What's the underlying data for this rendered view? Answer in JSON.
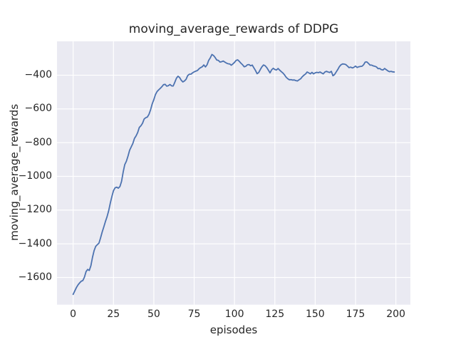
{
  "figure": {
    "background": "#ffffff"
  },
  "chart_data": {
    "type": "line",
    "title": "moving_average_rewards of DDPG",
    "xlabel": "episodes",
    "ylabel": "moving_average_rewards",
    "x_ticks": [
      0,
      25,
      50,
      75,
      100,
      125,
      150,
      175,
      200
    ],
    "y_ticks": [
      -400,
      -600,
      -800,
      -1000,
      -1200,
      -1400,
      -1600
    ],
    "xlim": [
      -10,
      209
    ],
    "ylim": [
      -1761,
      -199
    ],
    "grid": true,
    "legend": "none",
    "style": {
      "plot_background": "#eaeaf2",
      "grid_color": "#ffffff",
      "line_color": "#4c72b0",
      "text_color": "#262626",
      "line_width": 1.8
    },
    "series": [
      {
        "name": "moving_average_rewards",
        "x_is_episode_index": true,
        "values": [
          -1700,
          -1680,
          -1660,
          -1644,
          -1632,
          -1622,
          -1618,
          -1598,
          -1565,
          -1552,
          -1558,
          -1530,
          -1480,
          -1440,
          -1415,
          -1405,
          -1396,
          -1365,
          -1330,
          -1300,
          -1268,
          -1240,
          -1205,
          -1160,
          -1120,
          -1085,
          -1068,
          -1064,
          -1070,
          -1060,
          -1030,
          -975,
          -930,
          -910,
          -880,
          -845,
          -825,
          -805,
          -775,
          -760,
          -740,
          -710,
          -700,
          -685,
          -660,
          -652,
          -648,
          -632,
          -605,
          -570,
          -545,
          -515,
          -497,
          -487,
          -478,
          -468,
          -456,
          -454,
          -465,
          -462,
          -455,
          -463,
          -464,
          -442,
          -418,
          -406,
          -414,
          -430,
          -440,
          -434,
          -424,
          -402,
          -394,
          -394,
          -386,
          -380,
          -376,
          -372,
          -362,
          -355,
          -350,
          -339,
          -351,
          -338,
          -312,
          -297,
          -277,
          -283,
          -295,
          -310,
          -312,
          -322,
          -320,
          -316,
          -322,
          -328,
          -332,
          -333,
          -341,
          -333,
          -324,
          -312,
          -309,
          -318,
          -329,
          -338,
          -350,
          -347,
          -338,
          -337,
          -344,
          -340,
          -356,
          -372,
          -391,
          -384,
          -366,
          -350,
          -339,
          -344,
          -355,
          -370,
          -386,
          -368,
          -359,
          -366,
          -369,
          -360,
          -370,
          -379,
          -387,
          -398,
          -412,
          -421,
          -427,
          -426,
          -429,
          -428,
          -432,
          -434,
          -427,
          -421,
          -409,
          -400,
          -393,
          -381,
          -386,
          -392,
          -383,
          -392,
          -386,
          -383,
          -385,
          -381,
          -387,
          -392,
          -381,
          -377,
          -381,
          -384,
          -377,
          -403,
          -396,
          -381,
          -366,
          -349,
          -338,
          -333,
          -334,
          -337,
          -346,
          -355,
          -352,
          -357,
          -353,
          -346,
          -354,
          -350,
          -348,
          -347,
          -338,
          -322,
          -321,
          -330,
          -340,
          -340,
          -345,
          -347,
          -351,
          -361,
          -360,
          -367,
          -369,
          -360,
          -367,
          -374,
          -379,
          -377,
          -380,
          -381
        ]
      }
    ]
  }
}
